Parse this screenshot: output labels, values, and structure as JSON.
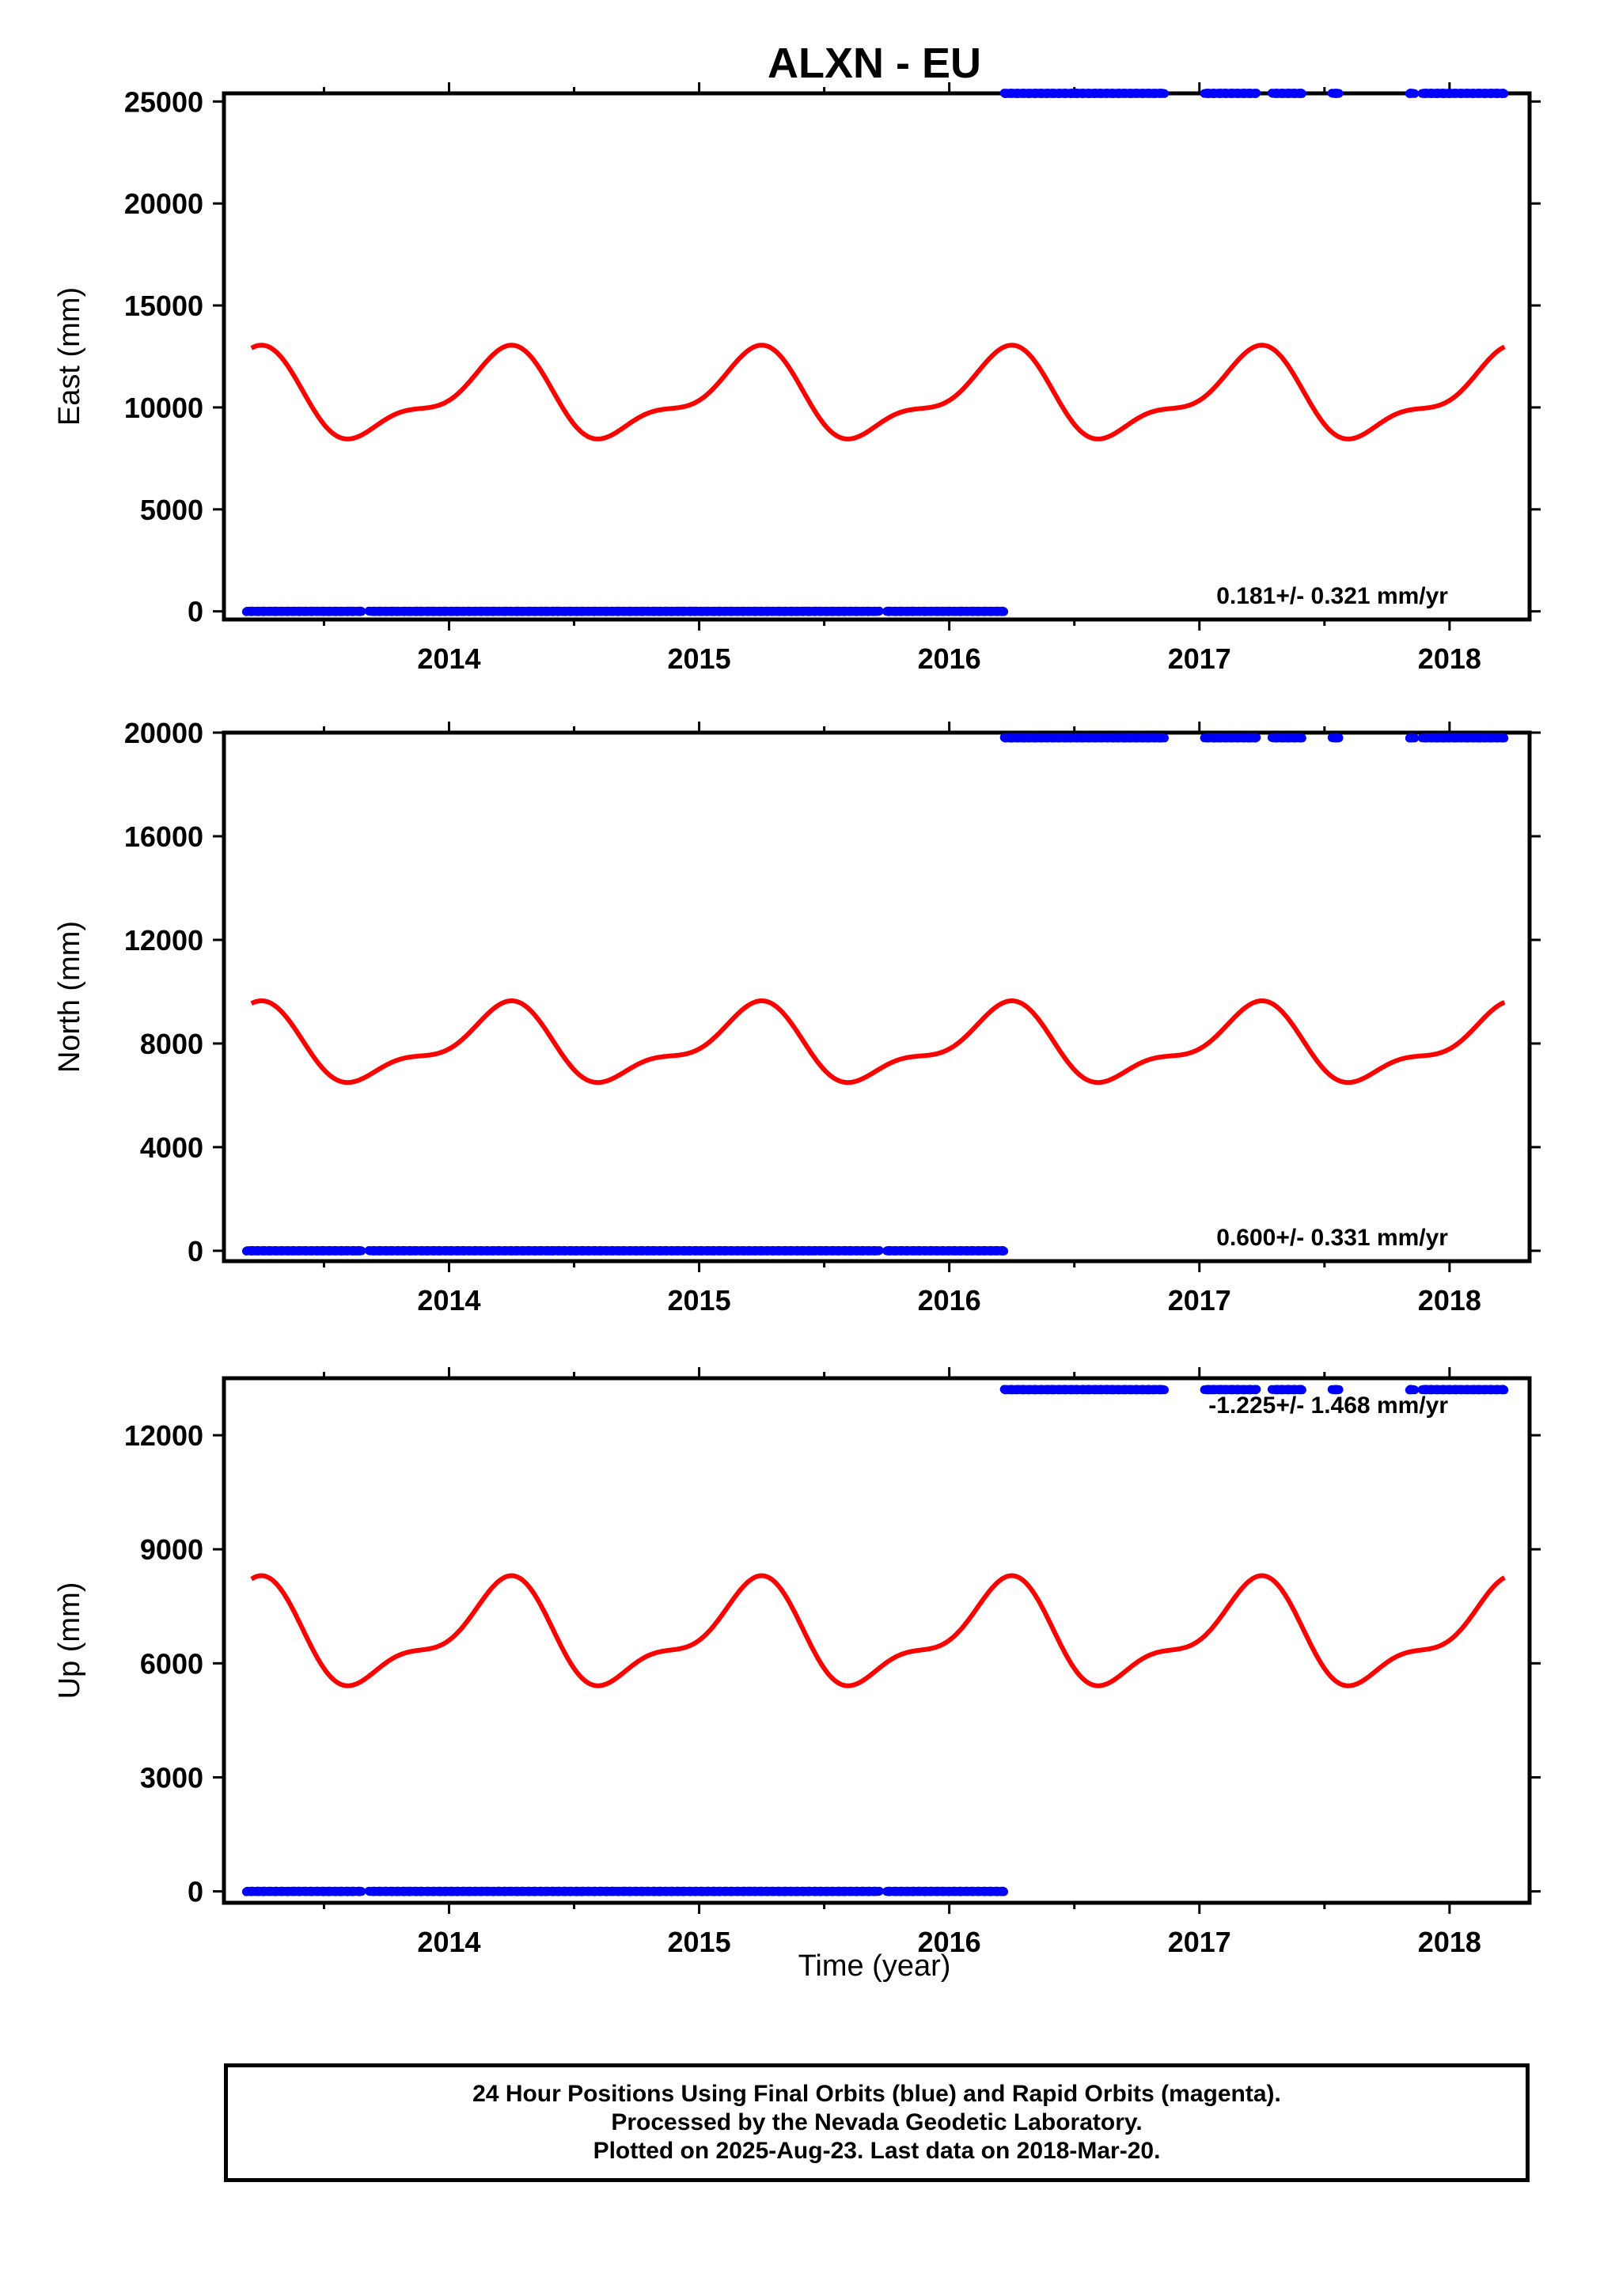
{
  "title": "ALXN - EU",
  "xlabel": "Time (year)",
  "footer": [
    "24 Hour Positions Using Final Orbits (blue) and Rapid Orbits (magenta).",
    "Processed by the Nevada Geodetic Laboratory.",
    "Plotted on 2025-Aug-23. Last data on 2018-Mar-20."
  ],
  "colors": {
    "data_points": "#0000ff",
    "model_curve": "#ff0000",
    "axes": "#000000"
  },
  "chart_data": [
    {
      "type": "scatter",
      "ylabel": "East (mm)",
      "rate_text": "0.181+/- 0.321 mm/yr",
      "xlim": [
        2013.1,
        2018.32
      ],
      "ylim": [
        -400,
        25400
      ],
      "xticks": [
        2014,
        2015,
        2016,
        2017,
        2018
      ],
      "yticks": [
        0,
        5000,
        10000,
        15000,
        20000,
        25000
      ],
      "grid": false,
      "series": [
        {
          "segments": [
            {
              "y": 0,
              "ranges": [
                [
                  2013.19,
                  2013.65
                ],
                [
                  2013.68,
                  2015.72
                ],
                [
                  2015.75,
                  2016.22
                ]
              ]
            },
            {
              "y": 25400,
              "ranges": [
                [
                  2016.22,
                  2016.86
                ],
                [
                  2017.02,
                  2017.23
                ],
                [
                  2017.29,
                  2017.41
                ],
                [
                  2017.53,
                  2017.56
                ],
                [
                  2017.84,
                  2017.86
                ],
                [
                  2017.89,
                  2018.22
                ]
              ]
            }
          ]
        },
        {
          "curve": {
            "mean": 10500,
            "annual_amp": 1900,
            "annual_phase": 0.2,
            "semiannual_amp": 800,
            "semiannual_phase": 0.28,
            "x_start": 2013.21,
            "x_end": 2018.22
          }
        }
      ]
    },
    {
      "type": "scatter",
      "ylabel": "North (mm)",
      "rate_text": "0.600+/- 0.331 mm/yr",
      "xlim": [
        2013.1,
        2018.32
      ],
      "ylim": [
        -400,
        20000
      ],
      "xticks": [
        2014,
        2015,
        2016,
        2017,
        2018
      ],
      "yticks": [
        0,
        4000,
        8000,
        12000,
        16000,
        20000
      ],
      "grid": false,
      "series": [
        {
          "segments": [
            {
              "y": 0,
              "ranges": [
                [
                  2013.19,
                  2013.65
                ],
                [
                  2013.68,
                  2015.72
                ],
                [
                  2015.75,
                  2016.22
                ]
              ]
            },
            {
              "y": 19800,
              "ranges": [
                [
                  2016.22,
                  2016.86
                ],
                [
                  2017.02,
                  2017.23
                ],
                [
                  2017.29,
                  2017.41
                ],
                [
                  2017.53,
                  2017.56
                ],
                [
                  2017.84,
                  2017.86
                ],
                [
                  2017.89,
                  2018.22
                ]
              ]
            }
          ]
        },
        {
          "curve": {
            "mean": 7900,
            "annual_amp": 1300,
            "annual_phase": 0.2,
            "semiannual_amp": 550,
            "semiannual_phase": 0.28,
            "x_start": 2013.21,
            "x_end": 2018.22
          }
        }
      ]
    },
    {
      "type": "scatter",
      "ylabel": "Up (mm)",
      "rate_text": "-1.225+/- 1.468 mm/yr",
      "xlim": [
        2013.1,
        2018.32
      ],
      "ylim": [
        -300,
        13500
      ],
      "xticks": [
        2014,
        2015,
        2016,
        2017,
        2018
      ],
      "yticks": [
        0,
        3000,
        6000,
        9000,
        12000
      ],
      "grid": false,
      "series": [
        {
          "segments": [
            {
              "y": 0,
              "ranges": [
                [
                  2013.19,
                  2013.65
                ],
                [
                  2013.68,
                  2015.72
                ],
                [
                  2015.75,
                  2016.22
                ]
              ]
            },
            {
              "y": 13200,
              "ranges": [
                [
                  2016.22,
                  2016.86
                ],
                [
                  2017.02,
                  2017.23
                ],
                [
                  2017.29,
                  2017.41
                ],
                [
                  2017.53,
                  2017.56
                ],
                [
                  2017.84,
                  2017.86
                ],
                [
                  2017.89,
                  2018.22
                ]
              ]
            }
          ]
        },
        {
          "curve": {
            "mean": 6700,
            "annual_amp": 1200,
            "annual_phase": 0.2,
            "semiannual_amp": 500,
            "semiannual_phase": 0.28,
            "x_start": 2013.21,
            "x_end": 2018.22
          }
        }
      ]
    }
  ]
}
